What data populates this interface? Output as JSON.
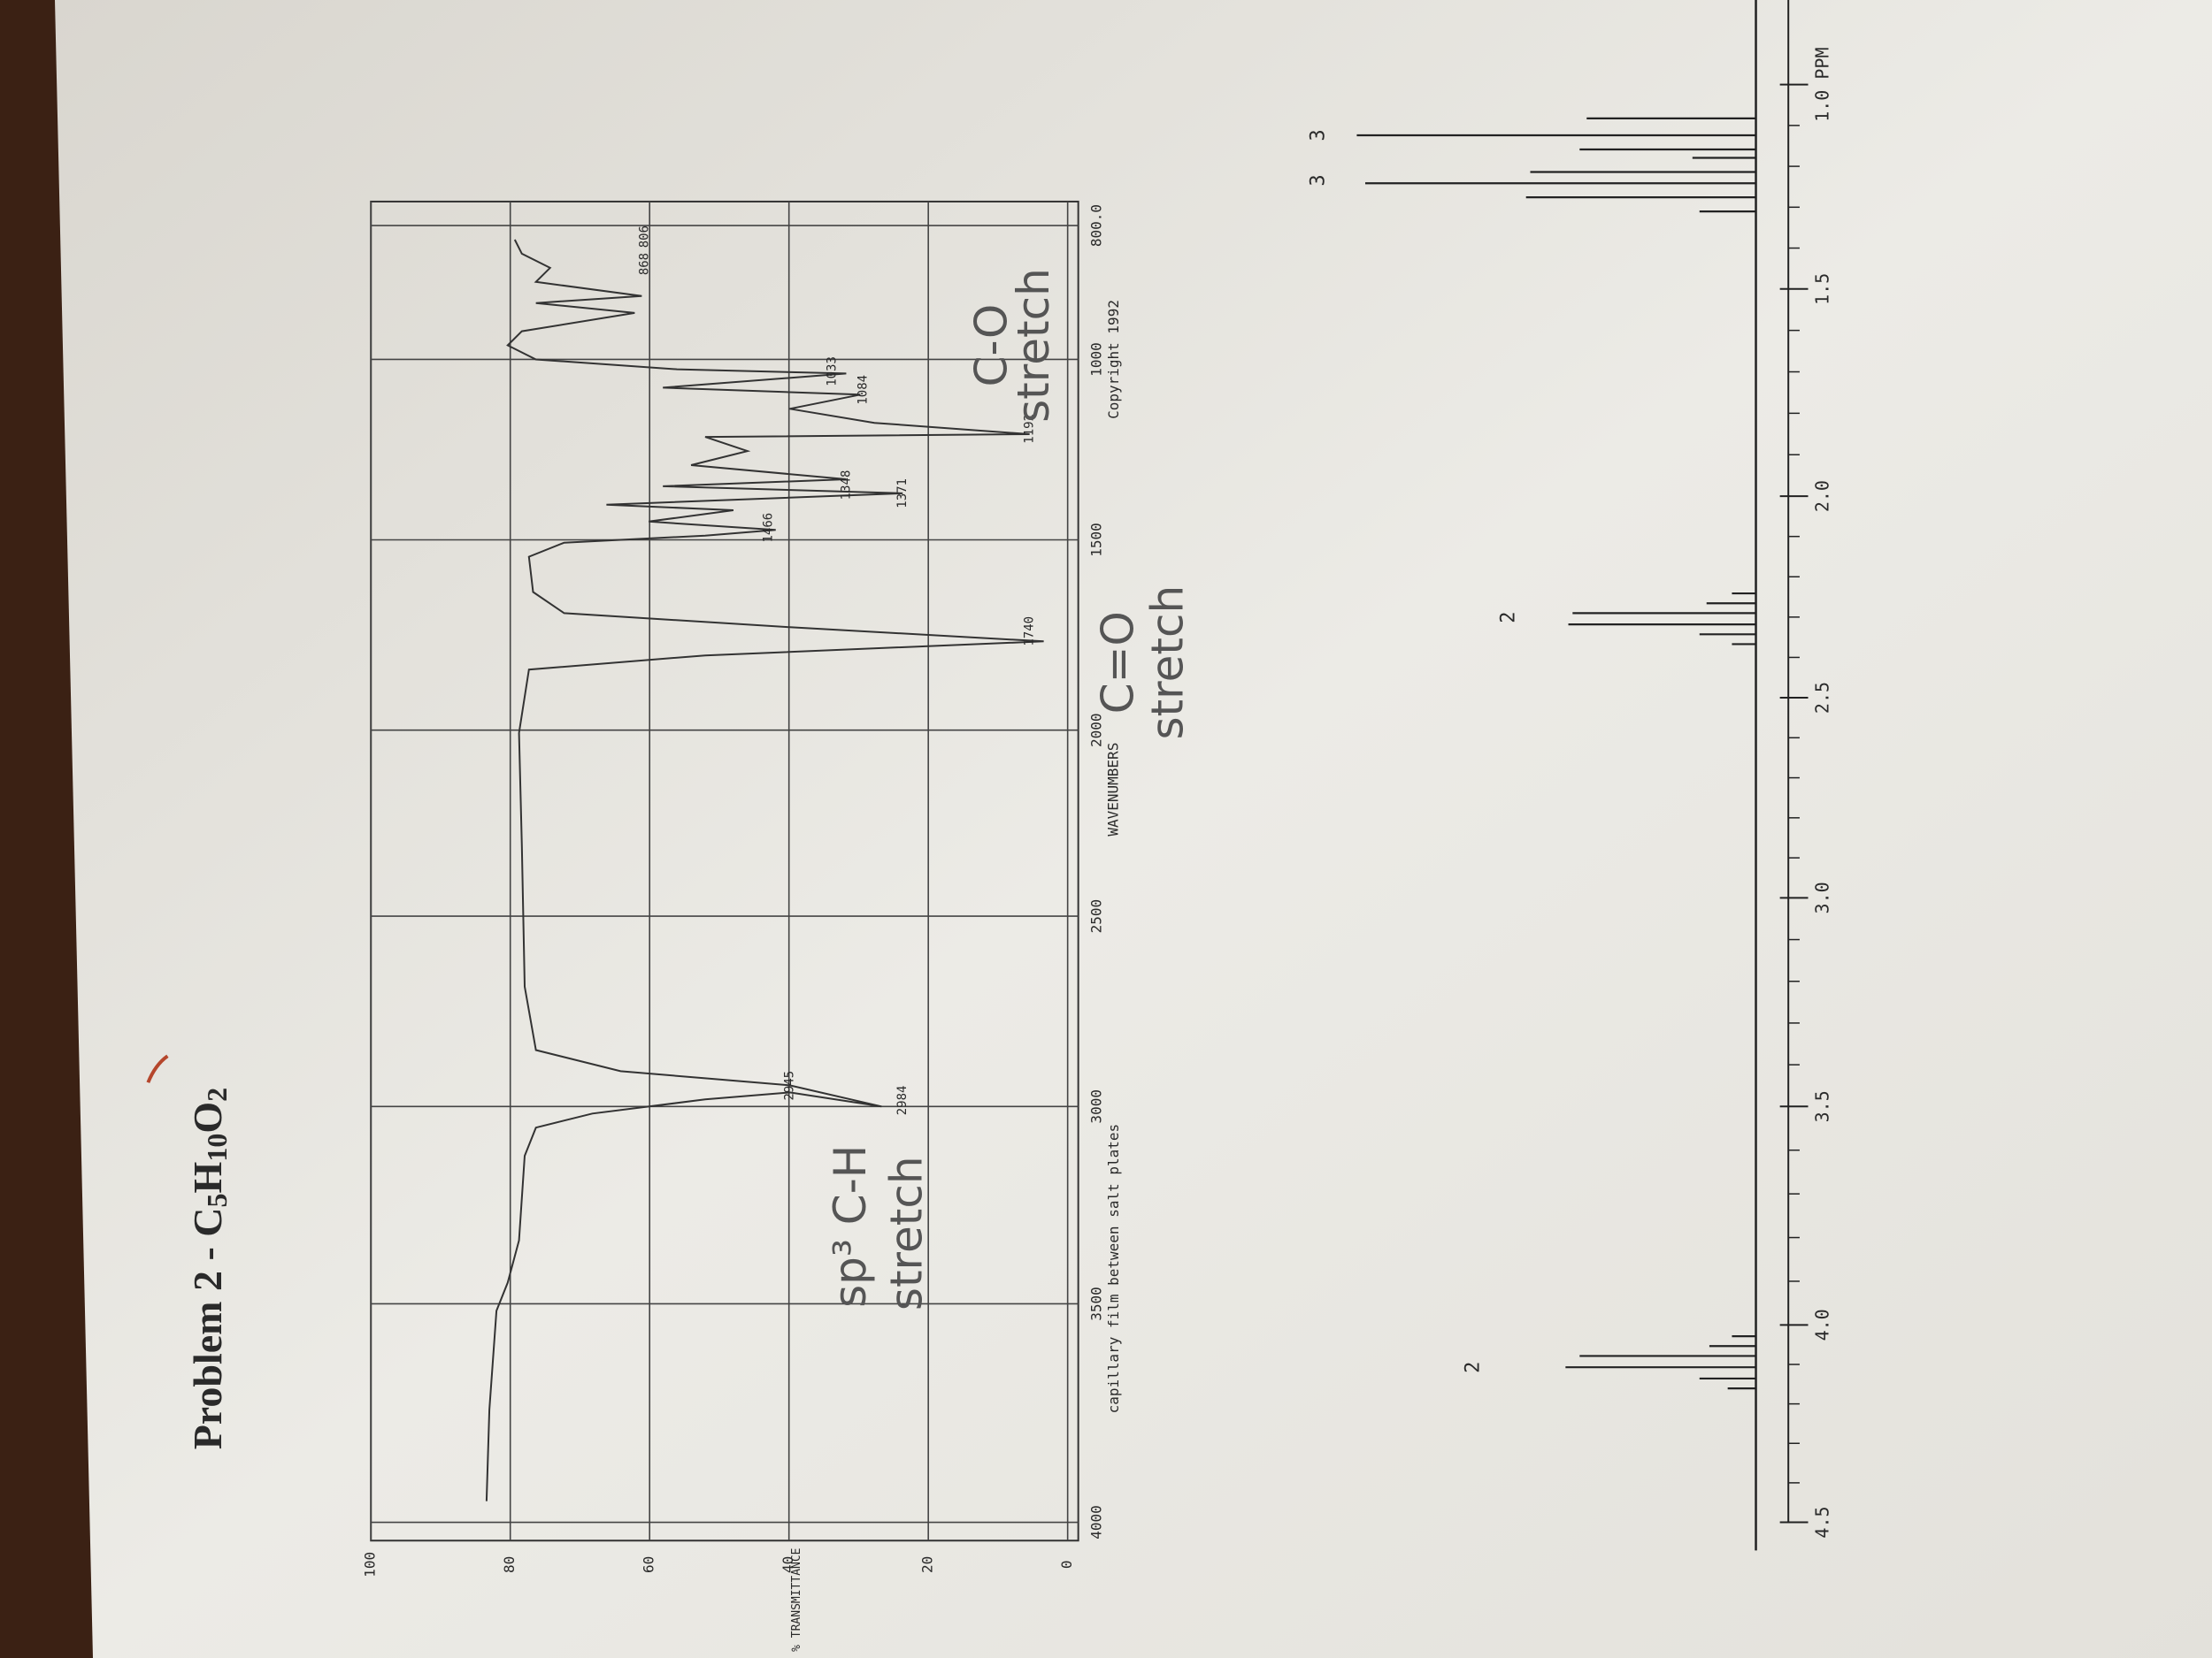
{
  "header": {
    "title": "Problem 2 - ",
    "formula": [
      "C",
      "5",
      "H",
      "10",
      "O",
      "2"
    ]
  },
  "ir_spectrum": {
    "y_label": "% TRANSMITTANCE",
    "x_label": "WAVENUMBERS",
    "note": "capillary film between salt plates",
    "copyright": "Copyright 1992",
    "yticks": [
      0,
      20,
      40,
      60,
      80,
      100
    ],
    "xticks": [
      4000,
      3500,
      3000,
      2500,
      2000,
      1500,
      1000,
      {
        "value": 800,
        "label": "800.0"
      }
    ],
    "peaks": [
      2984,
      2945,
      1740,
      1466,
      1371,
      1348,
      1192,
      1084,
      1033,
      868,
      806
    ],
    "annotations": [
      "sp³ C-H",
      "stretch",
      "C=O",
      "stretch",
      "C-O",
      "stretch"
    ]
  },
  "nmr_spectrum": {
    "xticks": [
      4.5,
      {
        "value": 4,
        "label": "4.0"
      },
      3.5,
      {
        "value": 3,
        "label": "3.0"
      },
      2.5,
      {
        "value": 2,
        "label": "2.0"
      },
      1.5,
      {
        "value": 1,
        "label": "1.0 PPM"
      }
    ],
    "integrations": [
      2,
      2,
      3,
      3
    ]
  }
}
